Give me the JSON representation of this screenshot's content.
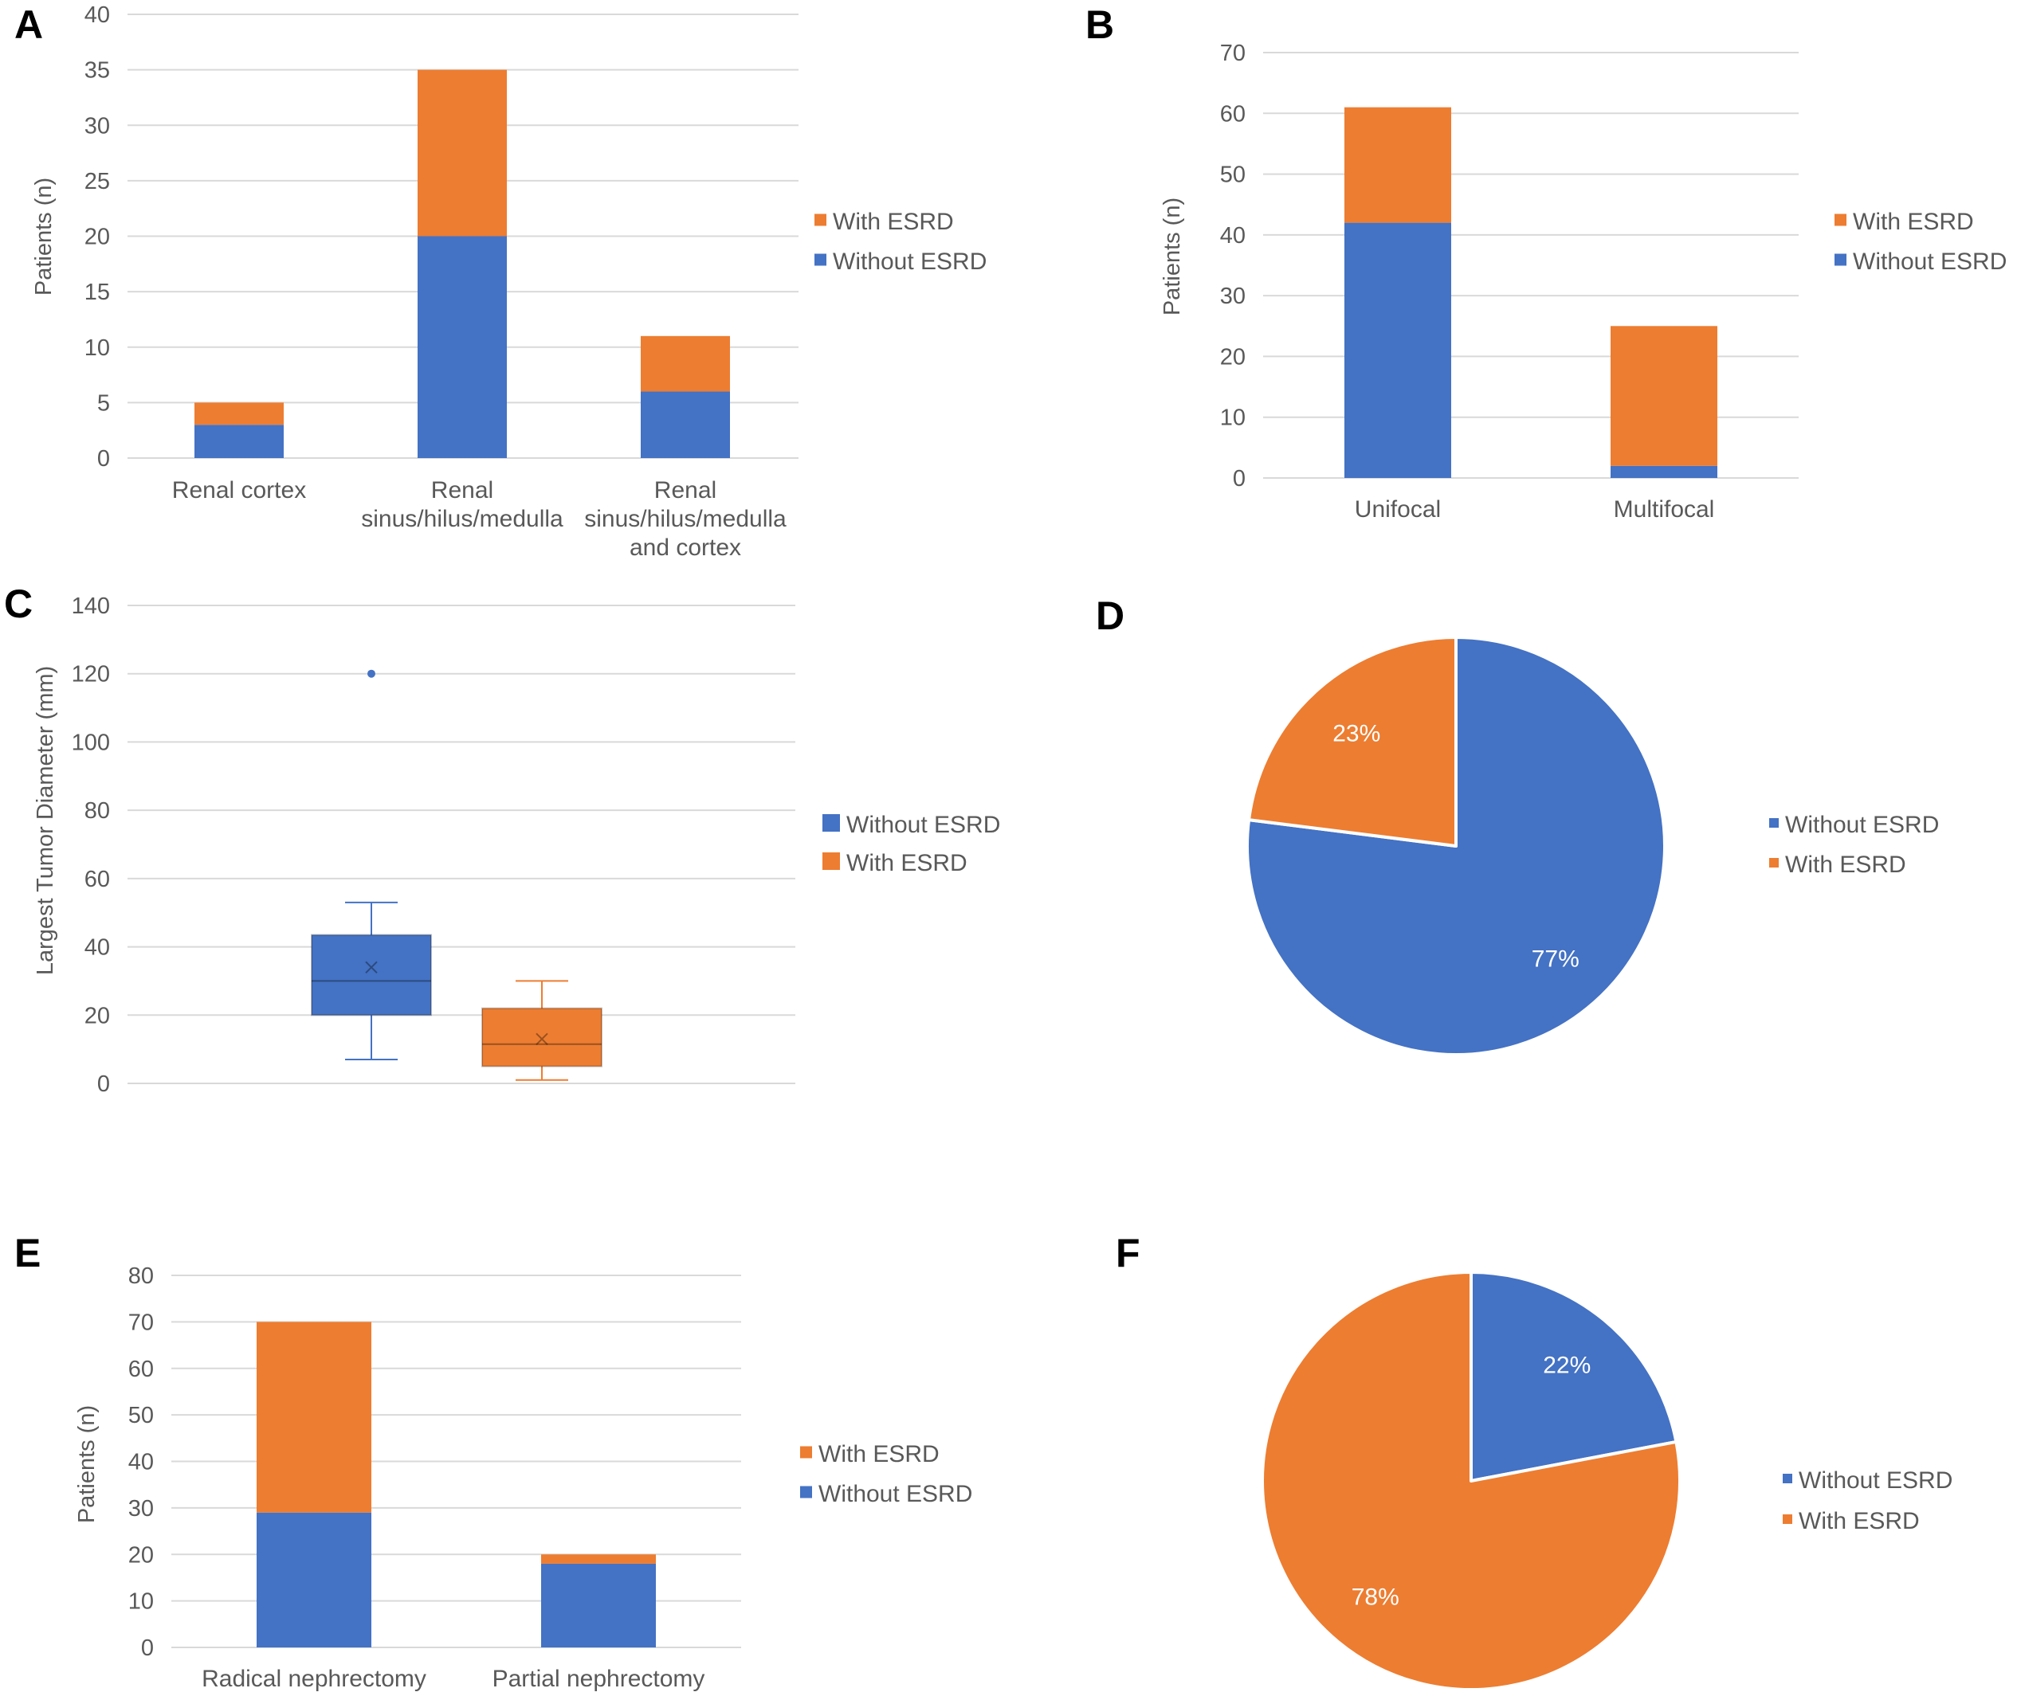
{
  "colors": {
    "without": "#4472C4",
    "with": "#ED7D31"
  },
  "chart_data": [
    {
      "panel": "A",
      "type": "bar",
      "stacked": true,
      "ylabel": "Patients (n)",
      "ylim": [
        0,
        40
      ],
      "ticks": [
        "0",
        "5",
        "10",
        "15",
        "20",
        "25",
        "30",
        "35",
        "40"
      ],
      "categories": [
        [
          "Renal cortex"
        ],
        [
          "Renal",
          "sinus/hilus/medulla"
        ],
        [
          "Renal",
          "sinus/hilus/medulla",
          "and cortex"
        ]
      ],
      "series": [
        {
          "name": "Without ESRD",
          "values": [
            3,
            20,
            6
          ]
        },
        {
          "name": "With ESRD",
          "values": [
            2,
            15,
            5
          ]
        }
      ],
      "legend": [
        "With ESRD",
        "Without ESRD"
      ]
    },
    {
      "panel": "B",
      "type": "bar",
      "stacked": true,
      "ylabel": "Patients (n)",
      "ylim": [
        0,
        70
      ],
      "ticks": [
        "0",
        "10",
        "20",
        "30",
        "40",
        "50",
        "60",
        "70"
      ],
      "categories": [
        [
          "Unifocal"
        ],
        [
          "Multifocal"
        ]
      ],
      "series": [
        {
          "name": "Without ESRD",
          "values": [
            42,
            2
          ]
        },
        {
          "name": "With ESRD",
          "values": [
            19,
            23
          ]
        }
      ],
      "legend": [
        "With ESRD",
        "Without ESRD"
      ]
    },
    {
      "panel": "C",
      "type": "box",
      "ylabel": "Largest Tumor Diameter (mm)",
      "ylim": [
        0,
        140
      ],
      "ticks": [
        "0",
        "20",
        "40",
        "60",
        "80",
        "100",
        "120",
        "140"
      ],
      "groups": [
        {
          "name": "Without ESRD",
          "min": 7,
          "q1": 20,
          "median": 30,
          "q3": 43.5,
          "max": 53,
          "mean": 34,
          "outliers": [
            120
          ]
        },
        {
          "name": "With ESRD",
          "min": 1,
          "q1": 5,
          "median": 11.5,
          "q3": 22,
          "max": 30,
          "mean": 13,
          "outliers": []
        }
      ],
      "legend": [
        "Without ESRD",
        "With ESRD"
      ]
    },
    {
      "panel": "D",
      "type": "pie",
      "slices": [
        {
          "name": "Without ESRD",
          "value": 77,
          "label": "77%"
        },
        {
          "name": "With ESRD",
          "value": 23,
          "label": "23%"
        }
      ],
      "legend": [
        "Without ESRD",
        "With ESRD"
      ]
    },
    {
      "panel": "E",
      "type": "bar",
      "stacked": true,
      "ylabel": "Patients (n)",
      "ylim": [
        0,
        80
      ],
      "ticks": [
        "0",
        "10",
        "20",
        "30",
        "40",
        "50",
        "60",
        "70",
        "80"
      ],
      "categories": [
        [
          "Radical nephrectomy"
        ],
        [
          "Partial nephrectomy"
        ]
      ],
      "series": [
        {
          "name": "Without ESRD",
          "values": [
            29,
            18
          ]
        },
        {
          "name": "With ESRD",
          "values": [
            41,
            2
          ]
        }
      ],
      "legend": [
        "With ESRD",
        "Without ESRD"
      ]
    },
    {
      "panel": "F",
      "type": "pie",
      "slices": [
        {
          "name": "Without ESRD",
          "value": 22,
          "label": "22%"
        },
        {
          "name": "With ESRD",
          "value": 78,
          "label": "78%"
        }
      ],
      "legend": [
        "Without ESRD",
        "With ESRD"
      ]
    }
  ]
}
